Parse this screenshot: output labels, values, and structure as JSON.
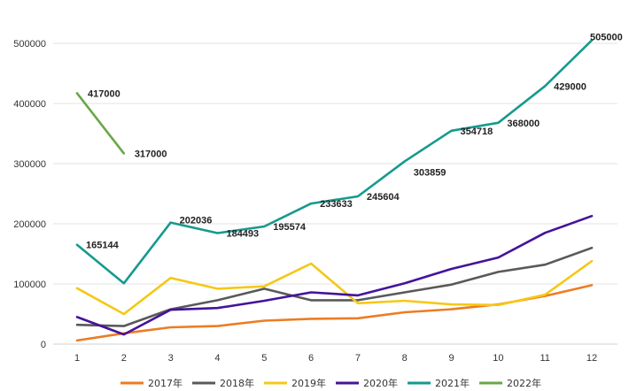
{
  "chart_data": {
    "type": "line",
    "title": "",
    "xlabel": "",
    "ylabel": "",
    "x": [
      1,
      2,
      3,
      4,
      5,
      6,
      7,
      8,
      9,
      10,
      11,
      12
    ],
    "ylim": [
      0,
      500000
    ],
    "yticks": [
      0,
      100000,
      200000,
      300000,
      400000,
      500000
    ],
    "grid": true,
    "legend_position": "bottom",
    "series": [
      {
        "name": "2017年",
        "color": "#ec7c23",
        "values": [
          6000,
          18000,
          28000,
          30000,
          39000,
          42000,
          43000,
          53000,
          58000,
          66000,
          80000,
          98000
        ]
      },
      {
        "name": "2018年",
        "color": "#595959",
        "values": [
          32000,
          30000,
          58000,
          73000,
          92000,
          73000,
          73000,
          86000,
          99000,
          120000,
          132000,
          160000
        ]
      },
      {
        "name": "2019年",
        "color": "#f5c817",
        "values": [
          93000,
          50000,
          110000,
          92000,
          96000,
          134000,
          68000,
          72000,
          66000,
          65000,
          82000,
          138000
        ]
      },
      {
        "name": "2020年",
        "color": "#44139a",
        "values": [
          45000,
          16000,
          57000,
          60000,
          72000,
          86000,
          81000,
          101000,
          125000,
          144000,
          185000,
          213000
        ]
      },
      {
        "name": "2021年",
        "color": "#159a8e",
        "values": [
          165144,
          101000,
          202036,
          184493,
          195574,
          233633,
          245604,
          303859,
          354718,
          368000,
          429000,
          505000
        ]
      },
      {
        "name": "2022年",
        "color": "#6aa746",
        "values": [
          417000,
          317000,
          null,
          null,
          null,
          null,
          null,
          null,
          null,
          null,
          null,
          null
        ]
      }
    ],
    "data_labels": [
      {
        "series": "2021年",
        "x": 1,
        "text": "165144"
      },
      {
        "series": "2021年",
        "x": 3,
        "text": "202036"
      },
      {
        "series": "2021年",
        "x": 4,
        "text": "184493"
      },
      {
        "series": "2021年",
        "x": 5,
        "text": "195574"
      },
      {
        "series": "2021年",
        "x": 6,
        "text": "233633"
      },
      {
        "series": "2021年",
        "x": 7,
        "text": "245604"
      },
      {
        "series": "2021年",
        "x": 8,
        "text": "303859"
      },
      {
        "series": "2021年",
        "x": 9,
        "text": "354718"
      },
      {
        "series": "2021年",
        "x": 10,
        "text": "368000"
      },
      {
        "series": "2021年",
        "x": 11,
        "text": "429000"
      },
      {
        "series": "2021年",
        "x": 12,
        "text": "505000"
      },
      {
        "series": "2022年",
        "x": 1,
        "text": "417000"
      },
      {
        "series": "2022年",
        "x": 2,
        "text": "317000"
      }
    ]
  }
}
